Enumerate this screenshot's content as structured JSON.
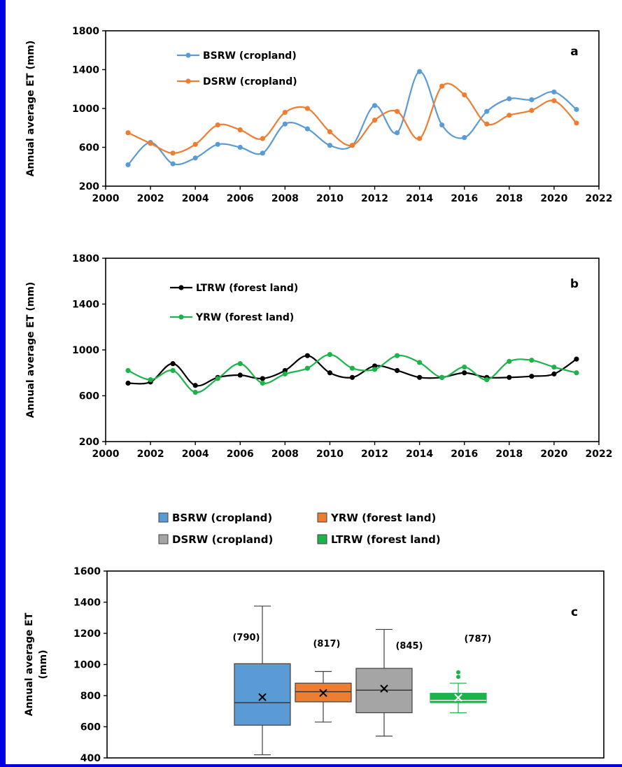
{
  "chart_data": [
    {
      "type": "line",
      "panel_label": "a",
      "ylabel": "Annual average ET (mm)",
      "xlim": [
        2000,
        2022
      ],
      "ylim": [
        200,
        1800
      ],
      "xticks": [
        "2000",
        "2002",
        "2004",
        "2006",
        "2008",
        "2010",
        "2012",
        "2014",
        "2016",
        "2018",
        "2020",
        "2022"
      ],
      "yticks": [
        "200",
        "600",
        "1000",
        "1400",
        "1800"
      ],
      "x": [
        2001,
        2002,
        2003,
        2004,
        2005,
        2006,
        2007,
        2008,
        2009,
        2010,
        2011,
        2012,
        2013,
        2014,
        2015,
        2016,
        2017,
        2018,
        2019,
        2020,
        2021
      ],
      "series": [
        {
          "name": "BSRW (cropland)",
          "color": "#5b9bd5",
          "values": [
            420,
            650,
            430,
            490,
            630,
            600,
            540,
            840,
            790,
            620,
            620,
            1030,
            750,
            1380,
            830,
            700,
            970,
            1100,
            1090,
            1170,
            990
          ]
        },
        {
          "name": "DSRW (cropland)",
          "color": "#ed7d31",
          "values": [
            750,
            640,
            540,
            630,
            830,
            780,
            690,
            960,
            1000,
            760,
            620,
            880,
            970,
            690,
            1230,
            1140,
            840,
            930,
            980,
            1080,
            850
          ]
        }
      ],
      "legend": "top-left",
      "grid": false
    },
    {
      "type": "line",
      "panel_label": "b",
      "ylabel": "Annual average ET (mm)",
      "xlim": [
        2000,
        2022
      ],
      "ylim": [
        200,
        1800
      ],
      "xticks": [
        "2000",
        "2002",
        "2004",
        "2006",
        "2008",
        "2010",
        "2012",
        "2014",
        "2016",
        "2018",
        "2020",
        "2022"
      ],
      "yticks": [
        "200",
        "600",
        "1000",
        "1400",
        "1800"
      ],
      "x": [
        2001,
        2002,
        2003,
        2004,
        2005,
        2006,
        2007,
        2008,
        2009,
        2010,
        2011,
        2012,
        2013,
        2014,
        2015,
        2016,
        2017,
        2018,
        2019,
        2020,
        2021
      ],
      "series": [
        {
          "name": "LTRW (forest land)",
          "color": "#000000",
          "values": [
            710,
            720,
            880,
            690,
            760,
            780,
            750,
            820,
            950,
            800,
            760,
            860,
            820,
            760,
            760,
            800,
            760,
            760,
            770,
            790,
            920
          ]
        },
        {
          "name": "YRW (forest land)",
          "color": "#1db34b",
          "values": [
            820,
            740,
            820,
            630,
            750,
            880,
            710,
            790,
            840,
            960,
            840,
            830,
            950,
            890,
            760,
            850,
            740,
            900,
            910,
            850,
            800
          ]
        }
      ],
      "legend": "top-left",
      "grid": false
    },
    {
      "type": "box",
      "panel_label": "c",
      "ylabel": "Annual average ET (mm)",
      "ylabel_line1": "Annual average ET",
      "ylabel_line2": "(mm)",
      "ylim": [
        400,
        1600
      ],
      "yticks": [
        "400",
        "600",
        "800",
        "1000",
        "1200",
        "1400",
        "1600"
      ],
      "legend": "top",
      "boxes": [
        {
          "name": "BSRW (cropland)",
          "color": "#5b9bd5",
          "min": 420,
          "q1": 610,
          "median": 755,
          "q3": 1005,
          "max": 1375,
          "mean": 790,
          "mean_label": "(790)",
          "outliers": []
        },
        {
          "name": "YRW (forest land)",
          "color": "#ed7d31",
          "min": 630,
          "q1": 760,
          "median": 825,
          "q3": 880,
          "max": 955,
          "mean": 817,
          "mean_label": "(817)",
          "outliers": []
        },
        {
          "name": "DSRW (cropland)",
          "color": "#a5a5a5",
          "min": 540,
          "q1": 690,
          "median": 835,
          "q3": 975,
          "max": 1225,
          "mean": 845,
          "mean_label": "(845)",
          "outliers": []
        },
        {
          "name": "LTRW (forest land)",
          "color": "#1db34b",
          "min": 690,
          "q1": 755,
          "median": 770,
          "q3": 815,
          "max": 880,
          "mean": 787,
          "mean_label": "(787)",
          "outliers": [
            920,
            950
          ]
        }
      ],
      "legend_order": [
        0,
        1,
        2,
        3
      ]
    }
  ]
}
